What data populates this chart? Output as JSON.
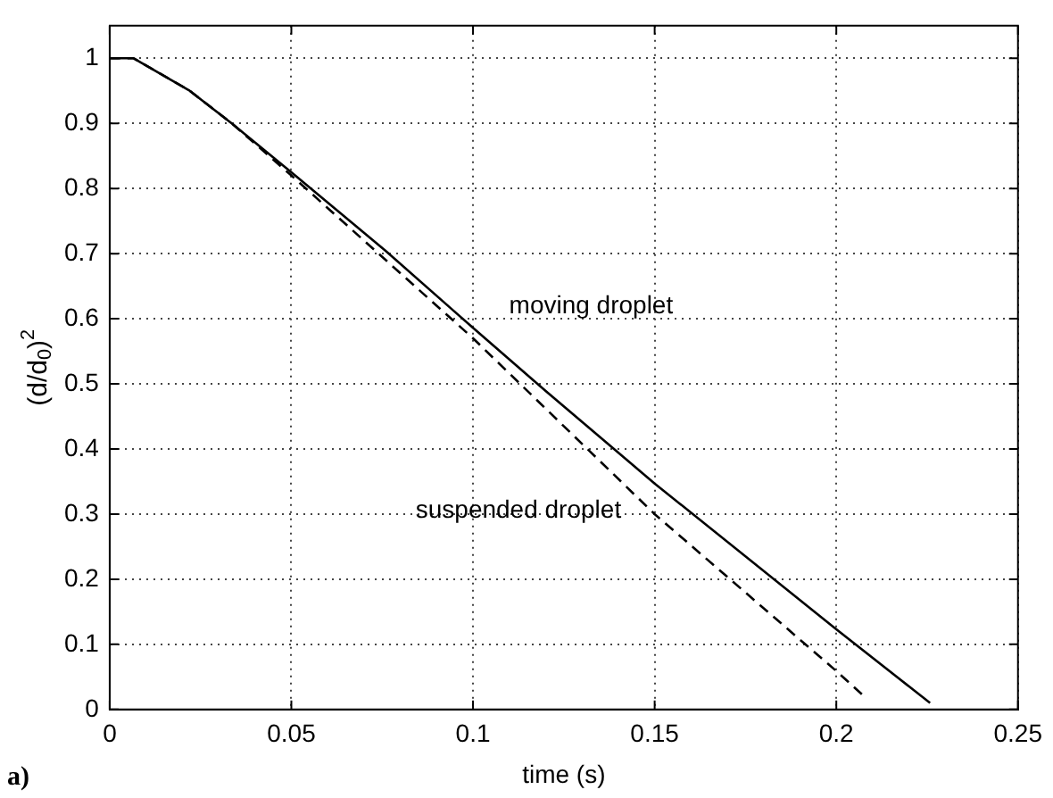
{
  "chart_data": {
    "type": "line",
    "xlabel": "time (s)",
    "ylabel": "(d/d$_{0}$)$^{2}$",
    "xlim": [
      0,
      0.25
    ],
    "xticks": [
      0,
      0.05,
      0.1,
      0.15,
      0.2,
      0.25
    ],
    "ylim": [
      0,
      1.05
    ],
    "yticks": [
      0,
      0.1,
      0.2,
      0.3,
      0.4,
      0.5,
      0.6,
      0.7,
      0.8,
      0.9,
      1
    ],
    "grid": true,
    "legend": false,
    "marker": "none",
    "series": [
      {
        "name": "moving droplet",
        "color": "#000000",
        "line_style": "solid",
        "x": [
          0,
          0.0066,
          0.0218,
          0.0336,
          0.05,
          0.0758,
          0.1,
          0.12,
          0.15,
          0.2,
          0.2258
        ],
        "values": [
          1,
          1,
          0.951,
          0.9,
          0.825,
          0.705,
          0.586,
          0.489,
          0.347,
          0.123,
          0.01
        ]
      },
      {
        "name": "suspended droplet",
        "color": "#000000",
        "line_style": "dashed",
        "x": [
          0,
          0.0066,
          0.0218,
          0.0336,
          0.05,
          0.075,
          0.1,
          0.15,
          0.2,
          0.2077
        ],
        "values": [
          1,
          1,
          0.951,
          0.9,
          0.82,
          0.695,
          0.57,
          0.3,
          0.059,
          0.02
        ]
      }
    ],
    "annotations": [
      "a)"
    ]
  }
}
